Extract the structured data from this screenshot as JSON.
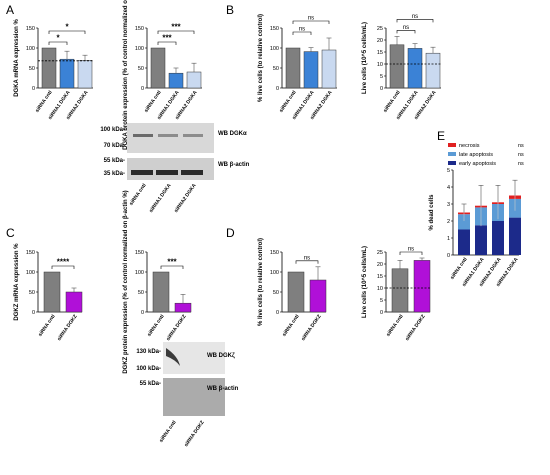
{
  "colors": {
    "gray": "#7f7f7f",
    "blue": "#3b82d6",
    "lightblue": "#c9d9f0",
    "purple": "#b010d8",
    "necrosis": "#e02020",
    "late": "#5b9bd5",
    "early": "#1c2a8a"
  },
  "letters": {
    "A": "A",
    "B": "B",
    "C": "C",
    "D": "D",
    "E": "E"
  },
  "blots": {
    "A_mw1": "100 kDa-",
    "A_mw2": "70 kDa-",
    "A_mw3": "55 kDa-",
    "A_mw4": "35 kDa-",
    "A_wb1": "WB DGKα",
    "A_wb2": "WB β-actin",
    "C_mw1": "130 kDa-",
    "C_mw2": "100 kDa-",
    "C_mw3": "55 kDa-",
    "C_wb1": "WB DGKζ",
    "C_wb2": "WB β-actin"
  },
  "chart_data": [
    {
      "id": "A1",
      "type": "bar",
      "ylabel": "DGKA mRNA expression %",
      "categories": [
        "siRNA cntl",
        "siRNA1 DGKA",
        "siRNA2 DGKA"
      ],
      "values": [
        100,
        72,
        69
      ],
      "errors": [
        0,
        20,
        13
      ],
      "colors": [
        "gray",
        "blue",
        "lightblue"
      ],
      "ylim": [
        0,
        150
      ],
      "yticks": [
        0,
        50,
        100,
        150
      ],
      "dashed_line": 68,
      "significance": [
        {
          "from": 0,
          "to": 1,
          "label": "*"
        },
        {
          "from": 0,
          "to": 2,
          "label": "*"
        }
      ]
    },
    {
      "id": "A2",
      "type": "bar",
      "ylabel": "DGKA protein expression (% of control normalized on β-actin %)",
      "categories": [
        "siRNA cntl",
        "siRNA1 DGKA",
        "siRNA2 DGKA"
      ],
      "values": [
        100,
        37,
        40
      ],
      "errors": [
        0,
        13,
        22
      ],
      "colors": [
        "gray",
        "blue",
        "lightblue"
      ],
      "ylim": [
        0,
        150
      ],
      "yticks": [
        0,
        50,
        100,
        150
      ],
      "significance": [
        {
          "from": 0,
          "to": 1,
          "label": "***"
        },
        {
          "from": 0,
          "to": 2,
          "label": "***"
        }
      ]
    },
    {
      "id": "B1",
      "type": "bar",
      "ylabel": "% live cells (to relative control)",
      "categories": [
        "siRNA cntl",
        "siRNA1 DGKA",
        "siRNA2 DGKA"
      ],
      "values": [
        100,
        91,
        95
      ],
      "errors": [
        0,
        10,
        30
      ],
      "colors": [
        "gray",
        "blue",
        "lightblue"
      ],
      "ylim": [
        0,
        150
      ],
      "yticks": [
        0,
        50,
        100,
        150
      ],
      "significance": [
        {
          "from": 0,
          "to": 1,
          "label": "ns"
        },
        {
          "from": 0,
          "to": 2,
          "label": "ns"
        }
      ]
    },
    {
      "id": "B2",
      "type": "bar",
      "ylabel": "Live cells (10^5 cells/mL)",
      "categories": [
        "siRNA cntl",
        "siRNA1 DGKA",
        "siRNA2 DGKA"
      ],
      "values": [
        18,
        16.5,
        14.5
      ],
      "errors": [
        3.5,
        2,
        2.5
      ],
      "colors": [
        "gray",
        "blue",
        "lightblue"
      ],
      "ylim": [
        0,
        25
      ],
      "yticks": [
        0,
        5,
        10,
        15,
        20,
        25
      ],
      "dashed_line": 10,
      "significance": [
        {
          "from": 0,
          "to": 1,
          "label": "ns"
        },
        {
          "from": 0,
          "to": 2,
          "label": "ns"
        }
      ]
    },
    {
      "id": "E",
      "type": "stacked-bar",
      "ylabel": "% dead cells",
      "categories": [
        "siRNA cntl",
        "siRNA1 DGKA",
        "siRNA2 DGKA",
        "siRNA2 DGKA"
      ],
      "series": [
        {
          "name": "early apoptosis",
          "color": "early",
          "values": [
            1.5,
            1.75,
            2.0,
            2.2
          ]
        },
        {
          "name": "late apoptosis",
          "color": "late",
          "values": [
            0.9,
            1.05,
            1.0,
            1.1
          ]
        },
        {
          "name": "necrosis",
          "color": "necrosis",
          "values": [
            0.1,
            0.1,
            0.1,
            0.2
          ]
        }
      ],
      "errors": [
        0.5,
        1.2,
        1.0,
        0.9
      ],
      "legend_ns": [
        "ns",
        "ns",
        "ns"
      ],
      "ylim": [
        0,
        5
      ],
      "yticks": [
        0,
        1,
        2,
        3,
        4,
        5
      ]
    },
    {
      "id": "C1",
      "type": "bar",
      "ylabel": "DGKZ mRNA expression %",
      "categories": [
        "siRNA cntl",
        "siRNA DGKZ"
      ],
      "values": [
        100,
        50
      ],
      "errors": [
        0,
        10
      ],
      "colors": [
        "gray",
        "purple"
      ],
      "ylim": [
        0,
        150
      ],
      "yticks": [
        0,
        50,
        100,
        150
      ],
      "significance": [
        {
          "from": 0,
          "to": 1,
          "label": "****"
        }
      ]
    },
    {
      "id": "C2",
      "type": "bar",
      "ylabel": "DGKZ protein expression (% of control normalized on β-actin %)",
      "categories": [
        "siRNA cntl",
        "siRNA DGKZ"
      ],
      "values": [
        100,
        22
      ],
      "errors": [
        0,
        22
      ],
      "colors": [
        "gray",
        "purple"
      ],
      "ylim": [
        0,
        150
      ],
      "yticks": [
        0,
        50,
        100,
        150
      ],
      "significance": [
        {
          "from": 0,
          "to": 1,
          "label": "***"
        }
      ]
    },
    {
      "id": "D1",
      "type": "bar",
      "ylabel": "% live cells (to relative control)",
      "categories": [
        "siRNA cntl",
        "siRNA DGKZ"
      ],
      "values": [
        100,
        80
      ],
      "errors": [
        0,
        33
      ],
      "colors": [
        "gray",
        "purple"
      ],
      "ylim": [
        0,
        150
      ],
      "yticks": [
        0,
        50,
        100,
        150
      ],
      "significance": [
        {
          "from": 0,
          "to": 1,
          "label": "ns"
        }
      ]
    },
    {
      "id": "D2",
      "type": "bar",
      "ylabel": "Live cells (10^5 cells/mL)",
      "categories": [
        "siRNA cntl",
        "siRNA DGKZ"
      ],
      "values": [
        18,
        21.5
      ],
      "errors": [
        3.5,
        1
      ],
      "colors": [
        "gray",
        "purple"
      ],
      "ylim": [
        0,
        25
      ],
      "yticks": [
        0,
        5,
        10,
        15,
        20,
        25
      ],
      "dashed_line": 10,
      "significance": [
        {
          "from": 0,
          "to": 1,
          "label": "ns"
        }
      ]
    }
  ]
}
